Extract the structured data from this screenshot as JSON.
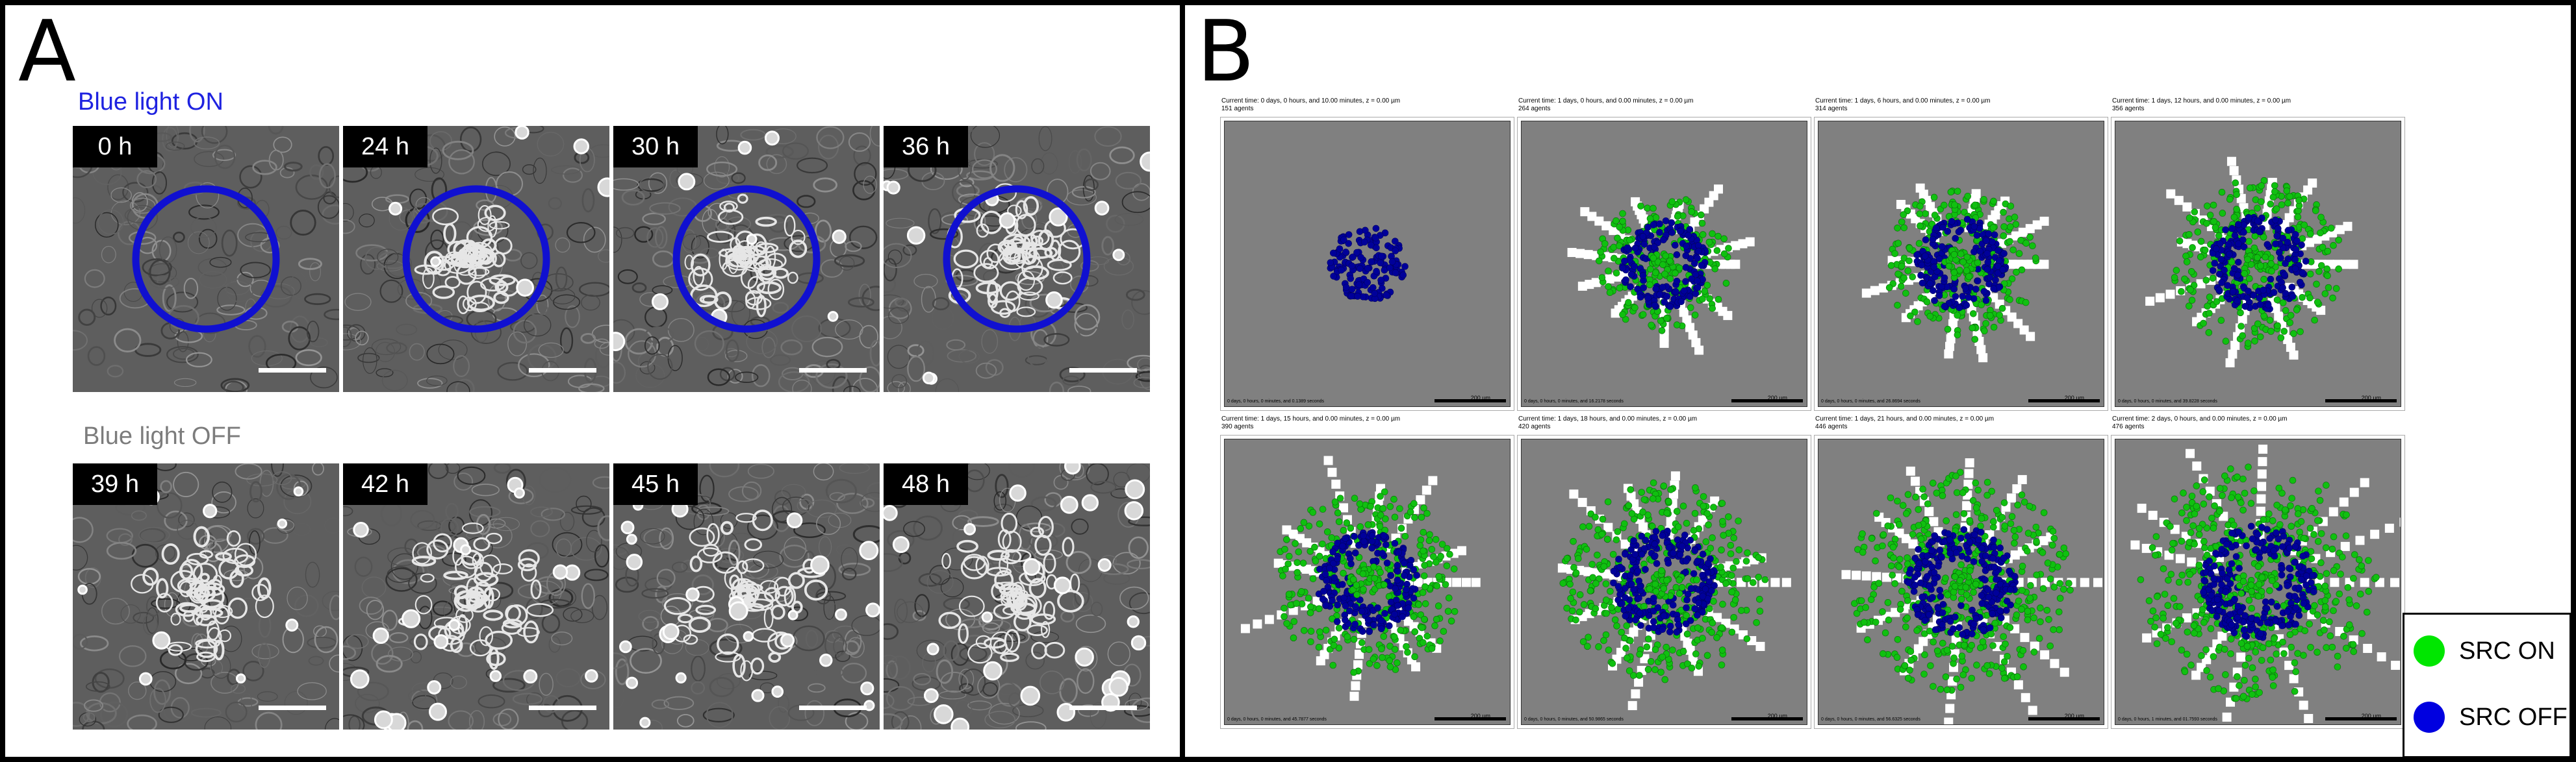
{
  "panelA": {
    "letter": "A",
    "top_label": "Blue light ON",
    "bottom_label": "Blue light OFF",
    "colors": {
      "on": "#1e22e0",
      "off": "#7c7c7c",
      "ring": "#1010d0"
    },
    "frames_on": [
      {
        "time": "0 h"
      },
      {
        "time": "24 h"
      },
      {
        "time": "30 h"
      },
      {
        "time": "36 h"
      }
    ],
    "frames_off": [
      {
        "time": "39 h"
      },
      {
        "time": "42 h"
      },
      {
        "time": "45 h"
      },
      {
        "time": "48 h"
      }
    ]
  },
  "panelB": {
    "letter": "B",
    "scale_label": "200 µm",
    "frames": [
      {
        "line1": "Current time: 0 days, 0 hours, and 10.00 minutes, z = 0.00 µm",
        "line2": "151 agents",
        "footer": "0 days, 0 hours, 0 minutes, and 0.1389 seconds",
        "stage": 0
      },
      {
        "line1": "Current time: 1 days, 0 hours, and 0.00 minutes, z = 0.00 µm",
        "line2": "264 agents",
        "footer": "0 days, 0 hours, 0 minutes, and 16.2178 seconds",
        "stage": 1
      },
      {
        "line1": "Current time: 1 days, 6 hours, and 0.00 minutes, z = 0.00 µm",
        "line2": "314 agents",
        "footer": "0 days, 0 hours, 0 minutes, and 26.8694 seconds",
        "stage": 2
      },
      {
        "line1": "Current time: 1 days, 12 hours, and 0.00 minutes, z = 0.00 µm",
        "line2": "356 agents",
        "footer": "0 days, 0 hours, 0 minutes, and 39.8228 seconds",
        "stage": 3
      },
      {
        "line1": "Current time: 1 days, 15 hours, and 0.00 minutes, z = 0.00 µm",
        "line2": "390 agents",
        "footer": "0 days, 0 hours, 0 minutes, and 45.7877 seconds",
        "stage": 4
      },
      {
        "line1": "Current time: 1 days, 18 hours, and 0.00 minutes, z = 0.00 µm",
        "line2": "420 agents",
        "footer": "0 days, 0 hours, 0 minutes, and 50.9865 seconds",
        "stage": 5
      },
      {
        "line1": "Current time: 1 days, 21 hours, and 0.00 minutes, z = 0.00 µm",
        "line2": "446 agents",
        "footer": "0 days, 0 hours, 0 minutes, and 56.6325 seconds",
        "stage": 6
      },
      {
        "line1": "Current time: 2 days, 0 hours, and 0.00 minutes, z = 0.00 µm",
        "line2": "476 agents",
        "footer": "0 days, 0 hours, 1 minutes, and 01.7593 seconds",
        "stage": 7
      }
    ],
    "legend": [
      {
        "label": "SRC ON",
        "color": "#00e600"
      },
      {
        "label": "SRC OFF",
        "color": "#0000e0"
      }
    ],
    "cell_colors": {
      "on": "#10c010",
      "off": "#00009a",
      "bg": "#808080",
      "trail": "#ffffff"
    }
  }
}
